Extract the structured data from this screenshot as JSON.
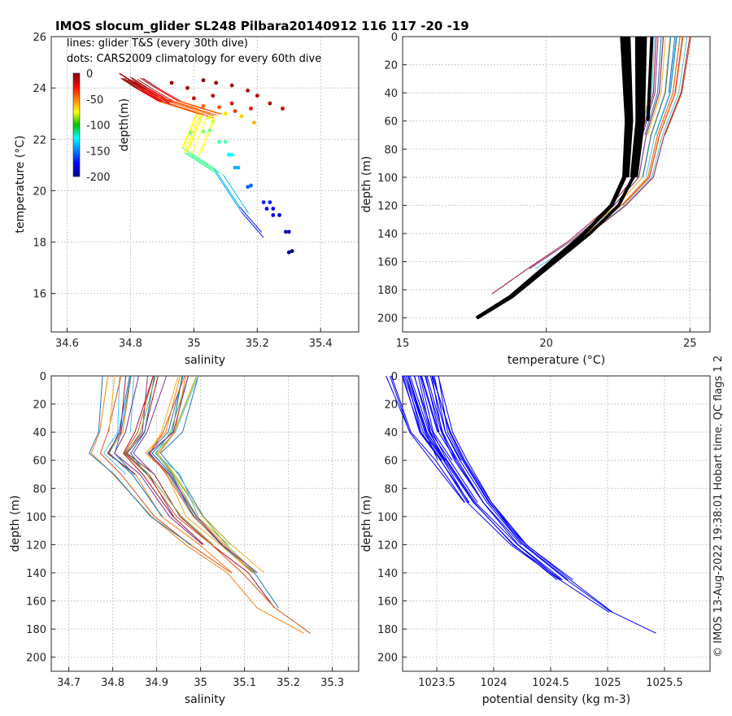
{
  "title": "IMOS slocum_glider SL248 Pilbara20140912 116  117  -20  -19",
  "legend_lines": "lines: glider T&S (every 30th dive)",
  "legend_dots": "dots: CARS2009 climatology for every 60th dive",
  "colorbar": {
    "label": "depth(m)",
    "ticks": [
      0,
      -50,
      -100,
      -150,
      -200
    ],
    "range": [
      -200,
      0
    ]
  },
  "side_note": "© IMOS 13-Aug-2022 19:38:01 Hobart time. QC flags 1  2",
  "colors": {
    "black": "#000000",
    "blue": "#0000ff",
    "grid": "#c8c8c8"
  },
  "chart_data": [
    {
      "id": "ts",
      "type": "scatter",
      "xlabel": "salinity",
      "ylabel": "temperature (°C)",
      "xlim": [
        34.55,
        35.52
      ],
      "ylim": [
        14.5,
        26
      ],
      "xticks": [
        34.6,
        34.8,
        35,
        35.2,
        35.4
      ],
      "yticks": [
        16,
        18,
        20,
        22,
        24,
        26
      ],
      "grid": true,
      "color_by": "depth (m)",
      "lines_sample": [
        {
          "s": 34.8,
          "t": 24.4,
          "d": -2
        },
        {
          "s": 34.85,
          "t": 24.0,
          "d": -10
        },
        {
          "s": 34.92,
          "t": 23.5,
          "d": -30
        },
        {
          "s": 35.05,
          "t": 23.0,
          "d": -55
        },
        {
          "s": 35.0,
          "t": 21.5,
          "d": -95
        },
        {
          "s": 35.1,
          "t": 20.7,
          "d": -120
        },
        {
          "s": 35.18,
          "t": 19.2,
          "d": -160
        },
        {
          "s": 35.25,
          "t": 18.2,
          "d": -185
        }
      ],
      "dots": [
        {
          "s": 35.31,
          "t": 17.65,
          "d": -200
        },
        {
          "s": 35.3,
          "t": 17.6,
          "d": -200
        },
        {
          "s": 35.29,
          "t": 18.4,
          "d": -190
        },
        {
          "s": 35.3,
          "t": 18.4,
          "d": -190
        },
        {
          "s": 35.25,
          "t": 19.05,
          "d": -180
        },
        {
          "s": 35.27,
          "t": 19.05,
          "d": -180
        },
        {
          "s": 35.23,
          "t": 19.3,
          "d": -175
        },
        {
          "s": 35.25,
          "t": 19.3,
          "d": -175
        },
        {
          "s": 35.22,
          "t": 19.55,
          "d": -170
        },
        {
          "s": 35.24,
          "t": 19.55,
          "d": -170
        },
        {
          "s": 35.17,
          "t": 20.15,
          "d": -155
        },
        {
          "s": 35.18,
          "t": 20.2,
          "d": -155
        },
        {
          "s": 35.13,
          "t": 20.9,
          "d": -140
        },
        {
          "s": 35.14,
          "t": 20.9,
          "d": -140
        },
        {
          "s": 35.11,
          "t": 21.4,
          "d": -125
        },
        {
          "s": 35.12,
          "t": 21.4,
          "d": -125
        },
        {
          "s": 35.08,
          "t": 21.9,
          "d": -110
        },
        {
          "s": 35.1,
          "t": 21.9,
          "d": -110
        },
        {
          "s": 34.99,
          "t": 22.25,
          "d": -100
        },
        {
          "s": 35.03,
          "t": 22.3,
          "d": -100
        },
        {
          "s": 35.05,
          "t": 22.35,
          "d": -100
        },
        {
          "s": 35.06,
          "t": 22.7,
          "d": -85
        },
        {
          "s": 35.05,
          "t": 22.85,
          "d": -80
        },
        {
          "s": 35.1,
          "t": 23.0,
          "d": -70
        },
        {
          "s": 35.15,
          "t": 22.9,
          "d": -65
        },
        {
          "s": 35.19,
          "t": 22.65,
          "d": -60
        },
        {
          "s": 35.03,
          "t": 23.3,
          "d": -45
        },
        {
          "s": 35.08,
          "t": 23.25,
          "d": -40
        },
        {
          "s": 35.13,
          "t": 23.1,
          "d": -35
        },
        {
          "s": 35.18,
          "t": 23.2,
          "d": -25
        },
        {
          "s": 34.93,
          "t": 24.2,
          "d": -5
        },
        {
          "s": 34.98,
          "t": 24.0,
          "d": -5
        },
        {
          "s": 35.03,
          "t": 24.3,
          "d": -2
        },
        {
          "s": 35.07,
          "t": 24.2,
          "d": -2
        },
        {
          "s": 35.12,
          "t": 24.1,
          "d": -3
        },
        {
          "s": 35.17,
          "t": 23.9,
          "d": -5
        },
        {
          "s": 35.2,
          "t": 23.7,
          "d": -8
        },
        {
          "s": 35.24,
          "t": 23.4,
          "d": -10
        },
        {
          "s": 35.28,
          "t": 23.2,
          "d": -12
        },
        {
          "s": 35.0,
          "t": 23.6,
          "d": -15
        },
        {
          "s": 35.06,
          "t": 23.7,
          "d": -10
        },
        {
          "s": 35.12,
          "t": 23.4,
          "d": -20
        }
      ]
    },
    {
      "id": "tz",
      "type": "line",
      "xlabel": "temperature (°C)",
      "ylabel": "depth (m)",
      "xlim": [
        15,
        25.7
      ],
      "ylim": [
        210,
        0
      ],
      "xticks": [
        15,
        20,
        25
      ],
      "yticks": [
        0,
        20,
        40,
        60,
        80,
        100,
        120,
        140,
        160,
        180,
        200
      ],
      "grid": true,
      "climatology_profile": [
        {
          "t": 23.2,
          "z": 0
        },
        {
          "t": 23.2,
          "z": 60
        },
        {
          "t": 23.1,
          "z": 80
        },
        {
          "t": 23.0,
          "z": 100
        },
        {
          "t": 22.5,
          "z": 120
        },
        {
          "t": 21.5,
          "z": 140
        },
        {
          "t": 20.0,
          "z": 165
        },
        {
          "t": 18.8,
          "z": 185
        },
        {
          "t": 17.6,
          "z": 200
        }
      ],
      "glider_profile_sample": [
        {
          "t": 24.4,
          "z": 0
        },
        {
          "t": 24.2,
          "z": 40
        },
        {
          "t": 23.7,
          "z": 70
        },
        {
          "t": 23.4,
          "z": 100
        },
        {
          "t": 22.5,
          "z": 120
        },
        {
          "t": 21.0,
          "z": 145
        },
        {
          "t": 19.5,
          "z": 165
        },
        {
          "t": 18.2,
          "z": 183
        }
      ]
    },
    {
      "id": "sz",
      "type": "line",
      "xlabel": "salinity",
      "ylabel": "depth (m)",
      "xlim": [
        34.66,
        35.36
      ],
      "ylim": [
        210,
        0
      ],
      "xticks": [
        34.7,
        34.8,
        34.9,
        35,
        35.1,
        35.2,
        35.3
      ],
      "yticks": [
        0,
        20,
        40,
        60,
        80,
        100,
        120,
        140,
        160,
        180,
        200
      ],
      "grid": true,
      "profile_sample": [
        {
          "s": 34.85,
          "z": 0
        },
        {
          "s": 34.83,
          "z": 40
        },
        {
          "s": 34.8,
          "z": 55
        },
        {
          "s": 34.85,
          "z": 70
        },
        {
          "s": 34.92,
          "z": 100
        },
        {
          "s": 35.0,
          "z": 120
        },
        {
          "s": 35.08,
          "z": 140
        },
        {
          "s": 35.15,
          "z": 165
        },
        {
          "s": 35.24,
          "z": 183
        }
      ]
    },
    {
      "id": "rz",
      "type": "line",
      "xlabel": "potential density (kg m-3)",
      "ylabel": "depth (m)",
      "xlim": [
        1023.2,
        1025.9
      ],
      "ylim": [
        210,
        0
      ],
      "xticks": [
        1023.5,
        1024,
        1024.5,
        1025,
        1025.5
      ],
      "yticks": [
        0,
        20,
        40,
        60,
        80,
        100,
        120,
        140,
        160,
        180,
        200
      ],
      "grid": true,
      "profile_sample": [
        {
          "r": 1023.3,
          "z": 0
        },
        {
          "r": 1023.45,
          "z": 40
        },
        {
          "r": 1023.6,
          "z": 60
        },
        {
          "r": 1023.85,
          "z": 90
        },
        {
          "r": 1024.2,
          "z": 120
        },
        {
          "r": 1024.6,
          "z": 145
        },
        {
          "r": 1025.0,
          "z": 168
        },
        {
          "r": 1025.4,
          "z": 183
        }
      ]
    }
  ]
}
